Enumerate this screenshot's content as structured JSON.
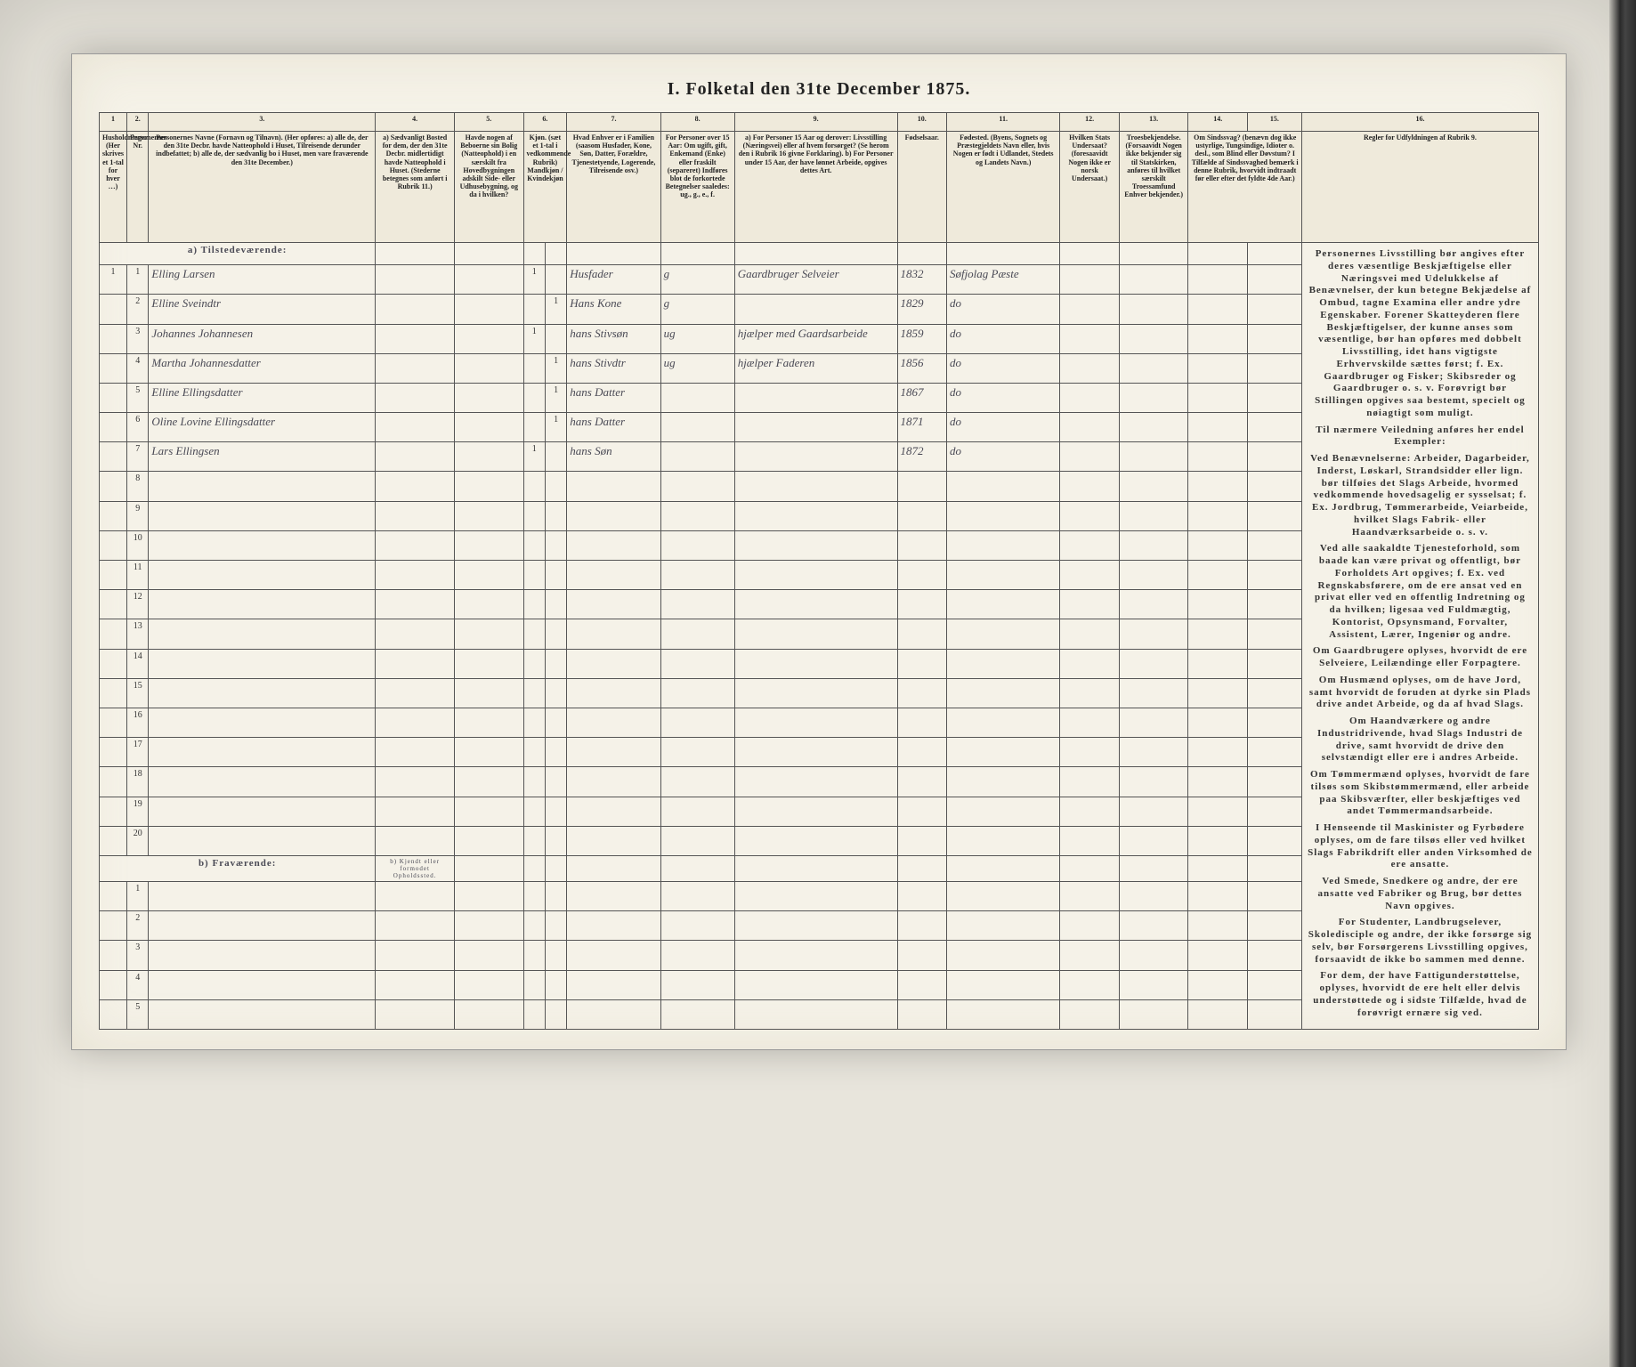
{
  "title": "I. Folketal den 31te December 1875.",
  "columns": {
    "nums": [
      "1",
      "2.",
      "3.",
      "4.",
      "5.",
      "6.",
      "7.",
      "8.",
      "9.",
      "10.",
      "11.",
      "12.",
      "13.",
      "14.",
      "15.",
      "16."
    ],
    "headers": [
      "Husholdninger. (Her skrives et 1-tal for hver …)",
      "Personernes Nr.",
      "Personernes Navne (Fornavn og Tilnavn). (Her opføres: a) alle de, der den 31te Decbr. havde Natteophold i Huset, Tilreisende derunder indbefattet; b) alle de, der sædvanlig bo i Huset, men vare fraværende den 31te December.)",
      "a) Sædvanligt Bosted for dem, der den 31te Decbr. midlertidigt havde Natteophold i Huset. (Stederne betegnes som anført i Rubrik 11.)",
      "Havde nogen af Beboerne sin Bolig (Natteophold) i en særskilt fra Hovedbygningen adskilt Side- eller Udhusebygning, og da i hvilken?",
      "Kjøn. (sæt et 1-tal i vedkommende Rubrik) Mandkjøn / Kvindekjøn",
      "",
      "Hvad Enhver er i Familien (saasom Husfader, Kone, Søn, Datter, Forældre, Tjenestetyende, Logerende, Tilreisende osv.)",
      "For Personer over 15 Aar: Om ugift, gift, Enkemand (Enke) eller fraskilt (separeret) Indføres blot de forkortede Betegnelser saaledes: ug., g., e., f.",
      "a) For Personer 15 Aar og derover: Livsstilling (Næringsvei) eller af hvem forsørget? (Se herom den i Rubrik 16 givne Forklaring). b) For Personer under 15 Aar, der have lønnet Arbeide, opgives dettes Art.",
      "Fødselsaar.",
      "Fødested. (Byens, Sognets og Præstegjeldets Navn eller, hvis Nogen er født i Udlandet, Stedets og Landets Navn.)",
      "Hvilken Stats Undersaat? (foresaavidt Nogen ikke er norsk Undersaat.)",
      "Troesbekjendelse. (Forsaavidt Nogen ikke bekjender sig til Statskirken, anføres til hvilket særskilt Troessamfund Enhver bekjender.)",
      "Om Sindssvag? (benævn dog ikke ustyrlige, Tungsindige, Idioter o. desl., som Blind eller Døvstum? I Tilfælde af Sindssvaghed bemærk i denne Rubrik, hvorvidt indtraadt før eller efter det fyldte 4de Aar.)",
      "",
      "Regler for Udfyldningen af Rubrik 9."
    ]
  },
  "section_present": "a) Tilstedeværende:",
  "section_absent": "b) Fraværende:",
  "absent_col4": "b) Kjendt eller formodet Opholdssted.",
  "rows": [
    {
      "n": "1",
      "hh": "1",
      "name": "Elling Larsen",
      "sex_m": "1",
      "sex_f": "",
      "rel": "Husfader",
      "marit": "g",
      "occ": "Gaardbruger Selveier",
      "year": "1832",
      "place": "Søfjolag Pæste"
    },
    {
      "n": "2",
      "hh": "",
      "name": "Elline Sveindtr",
      "sex_m": "",
      "sex_f": "1",
      "rel": "Hans Kone",
      "marit": "g",
      "occ": "",
      "year": "1829",
      "place": "do"
    },
    {
      "n": "3",
      "hh": "",
      "name": "Johannes Johannesen",
      "sex_m": "1",
      "sex_f": "",
      "rel": "hans Stivsøn",
      "marit": "ug",
      "occ": "hjælper med Gaardsarbeide",
      "year": "1859",
      "place": "do"
    },
    {
      "n": "4",
      "hh": "",
      "name": "Martha Johannesdatter",
      "sex_m": "",
      "sex_f": "1",
      "rel": "hans Stivdtr",
      "marit": "ug",
      "occ": "hjælper Faderen",
      "year": "1856",
      "place": "do"
    },
    {
      "n": "5",
      "hh": "",
      "name": "Elline Ellingsdatter",
      "sex_m": "",
      "sex_f": "1",
      "rel": "hans Datter",
      "marit": "",
      "occ": "",
      "year": "1867",
      "place": "do"
    },
    {
      "n": "6",
      "hh": "",
      "name": "Oline Lovine Ellingsdatter",
      "sex_m": "",
      "sex_f": "1",
      "rel": "hans Datter",
      "marit": "",
      "occ": "",
      "year": "1871",
      "place": "do"
    },
    {
      "n": "7",
      "hh": "",
      "name": "Lars Ellingsen",
      "sex_m": "1",
      "sex_f": "",
      "rel": "hans Søn",
      "marit": "",
      "occ": "",
      "year": "1872",
      "place": "do"
    }
  ],
  "empty_present": [
    "8",
    "9",
    "10",
    "11",
    "12",
    "13",
    "14",
    "15",
    "16",
    "17",
    "18",
    "19",
    "20"
  ],
  "empty_absent": [
    "1",
    "2",
    "3",
    "4",
    "5"
  ],
  "rules": [
    "Personernes Livsstilling bør angives efter deres væsentlige Beskjæftigelse eller Næringsvei med Udelukkelse af Benævnelser, der kun betegne Bekjædelse af Ombud, tagne Examina eller andre ydre Egenskaber. Forener Skatteyderen flere Beskjæftigelser, der kunne anses som væsentlige, bør han opføres med dobbelt Livsstilling, idet hans vigtigste Erhvervskilde sættes først; f. Ex. Gaardbruger og Fisker; Skibsreder og Gaardbruger o. s. v. Forøvrigt bør Stillingen opgives saa bestemt, specielt og nøiagtigt som muligt.",
    "Til nærmere Veiledning anføres her endel Exempler:",
    "Ved Benævnelserne: Arbeider, Dagarbeider, Inderst, Løskarl, Strandsidder eller lign. bør tilføies det Slags Arbeide, hvormed vedkommende hovedsagelig er sysselsat; f. Ex. Jordbrug, Tømmerarbeide, Veiarbeide, hvilket Slags Fabrik- eller Haandværksarbeide o. s. v.",
    "Ved alle saakaldte Tjenesteforhold, som baade kan være privat og offentligt, bør Forholdets Art opgives; f. Ex. ved Regnskabsførere, om de ere ansat ved en privat eller ved en offentlig Indretning og da hvilken; ligesaa ved Fuldmægtig, Kontorist, Opsynsmand, Forvalter, Assistent, Lærer, Ingeniør og andre.",
    "Om Gaardbrugere oplyses, hvorvidt de ere Selveiere, Leilændinge eller Forpagtere.",
    "Om Husmænd oplyses, om de have Jord, samt hvorvidt de foruden at dyrke sin Plads drive andet Arbeide, og da af hvad Slags.",
    "Om Haandværkere og andre Industridrivende, hvad Slags Industri de drive, samt hvorvidt de drive den selvstændigt eller ere i andres Arbeide.",
    "Om Tømmermænd oplyses, hvorvidt de fare tilsøs som Skibstømmermænd, eller arbeide paa Skibsværfter, eller beskjæftiges ved andet Tømmermandsarbeide.",
    "I Henseende til Maskinister og Fyrbødere oplyses, om de fare tilsøs eller ved hvilket Slags Fabrikdrift eller anden Virksomhed de ere ansatte.",
    "Ved Smede, Snedkere og andre, der ere ansatte ved Fabriker og Brug, bør dettes Navn opgives.",
    "For Studenter, Landbrugselever, Skoledisciple og andre, der ikke forsørge sig selv, bør Forsørgerens Livsstilling opgives, forsaavidt de ikke bo sammen med denne.",
    "For dem, der have Fattigunderstøttelse, oplyses, hvorvidt de ere helt eller delvis understøttede og i sidste Tilfælde, hvad de forøvrigt ernære sig ved."
  ]
}
